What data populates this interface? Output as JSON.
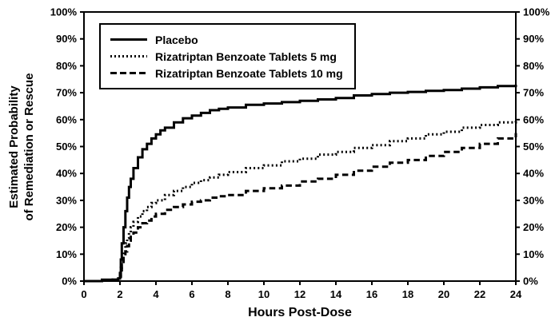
{
  "chart_data": {
    "type": "line",
    "title": "",
    "xlabel": "Hours Post-Dose",
    "ylabel": "Estimated Probability of Remediation or Rescue",
    "ylabel_lines": [
      "Estimated Probability",
      "of Remediation or Rescue"
    ],
    "x_axis": {
      "min": 0,
      "max": 24,
      "tick_step": 2
    },
    "y_axis": {
      "min": 0,
      "max": 100,
      "tick_step": 10,
      "tick_suffix": "%",
      "mirrored_right": true
    },
    "grid": false,
    "legend_position": "top-left",
    "line_color": "#000000",
    "series": [
      {
        "name": "Placebo",
        "style": "solid",
        "points": [
          [
            0,
            0
          ],
          [
            0.5,
            0
          ],
          [
            1,
            0.5
          ],
          [
            1.5,
            0.5
          ],
          [
            1.9,
            1
          ],
          [
            2,
            3
          ],
          [
            2.05,
            8
          ],
          [
            2.1,
            14
          ],
          [
            2.2,
            20
          ],
          [
            2.3,
            26
          ],
          [
            2.4,
            31
          ],
          [
            2.5,
            35
          ],
          [
            2.6,
            38
          ],
          [
            2.75,
            42
          ],
          [
            3,
            46
          ],
          [
            3.25,
            49
          ],
          [
            3.5,
            51
          ],
          [
            3.75,
            53
          ],
          [
            4,
            54.5
          ],
          [
            4.25,
            56
          ],
          [
            4.5,
            57
          ],
          [
            5,
            59
          ],
          [
            5.5,
            60.5
          ],
          [
            6,
            61.5
          ],
          [
            6.5,
            62.5
          ],
          [
            7,
            63.5
          ],
          [
            7.5,
            64
          ],
          [
            8,
            64.5
          ],
          [
            9,
            65.5
          ],
          [
            10,
            66
          ],
          [
            11,
            66.5
          ],
          [
            12,
            67
          ],
          [
            13,
            67.5
          ],
          [
            14,
            68
          ],
          [
            15,
            69
          ],
          [
            16,
            69.5
          ],
          [
            17,
            70
          ],
          [
            18,
            70.3
          ],
          [
            19,
            70.7
          ],
          [
            20,
            71
          ],
          [
            21,
            71.5
          ],
          [
            22,
            72
          ],
          [
            23,
            72.5
          ],
          [
            24,
            73
          ]
        ]
      },
      {
        "name": "Rizatriptan Benzoate Tablets 5 mg",
        "style": "dotted",
        "points": [
          [
            0,
            0
          ],
          [
            0.5,
            0
          ],
          [
            1,
            0.3
          ],
          [
            1.5,
            0.5
          ],
          [
            1.9,
            1
          ],
          [
            2,
            2
          ],
          [
            2.05,
            5
          ],
          [
            2.1,
            8
          ],
          [
            2.2,
            11
          ],
          [
            2.3,
            14
          ],
          [
            2.4,
            16
          ],
          [
            2.5,
            18
          ],
          [
            2.6,
            20
          ],
          [
            2.75,
            22
          ],
          [
            3,
            24
          ],
          [
            3.25,
            26
          ],
          [
            3.5,
            27.5
          ],
          [
            3.75,
            29
          ],
          [
            4,
            30
          ],
          [
            4.5,
            32
          ],
          [
            5,
            33.5
          ],
          [
            5.5,
            35
          ],
          [
            6,
            36.5
          ],
          [
            6.5,
            37.5
          ],
          [
            7,
            38.5
          ],
          [
            7.5,
            39.5
          ],
          [
            8,
            40.5
          ],
          [
            9,
            42
          ],
          [
            10,
            43
          ],
          [
            11,
            44.5
          ],
          [
            12,
            45.5
          ],
          [
            13,
            47
          ],
          [
            14,
            48
          ],
          [
            15,
            49.5
          ],
          [
            16,
            50.5
          ],
          [
            17,
            52
          ],
          [
            18,
            53
          ],
          [
            19,
            54.5
          ],
          [
            20,
            55.5
          ],
          [
            21,
            57
          ],
          [
            22,
            58
          ],
          [
            23,
            59
          ],
          [
            24,
            60
          ]
        ]
      },
      {
        "name": "Rizatriptan Benzoate Tablets 10 mg",
        "style": "dashed",
        "points": [
          [
            0,
            0
          ],
          [
            0.5,
            0
          ],
          [
            1,
            0.3
          ],
          [
            1.5,
            0.5
          ],
          [
            1.9,
            1
          ],
          [
            2,
            1.5
          ],
          [
            2.05,
            4
          ],
          [
            2.1,
            6
          ],
          [
            2.2,
            9
          ],
          [
            2.3,
            11
          ],
          [
            2.4,
            13
          ],
          [
            2.5,
            15
          ],
          [
            2.6,
            16.5
          ],
          [
            2.75,
            18
          ],
          [
            3,
            20
          ],
          [
            3.25,
            21.5
          ],
          [
            3.5,
            22.5
          ],
          [
            3.75,
            24
          ],
          [
            4,
            25
          ],
          [
            4.5,
            26.5
          ],
          [
            5,
            27.5
          ],
          [
            5.5,
            28.5
          ],
          [
            6,
            29.5
          ],
          [
            6.5,
            30
          ],
          [
            7,
            31
          ],
          [
            7.5,
            31.5
          ],
          [
            8,
            32
          ],
          [
            9,
            33.5
          ],
          [
            10,
            34.5
          ],
          [
            11,
            35.5
          ],
          [
            12,
            37
          ],
          [
            13,
            38
          ],
          [
            14,
            39.5
          ],
          [
            15,
            41
          ],
          [
            16,
            42.5
          ],
          [
            17,
            44
          ],
          [
            18,
            45
          ],
          [
            19,
            46.5
          ],
          [
            20,
            48
          ],
          [
            21,
            49.5
          ],
          [
            22,
            51
          ],
          [
            23,
            53
          ],
          [
            24,
            55
          ]
        ]
      }
    ]
  }
}
